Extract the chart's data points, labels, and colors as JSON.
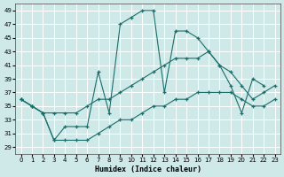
{
  "xlabel": "Humidex (Indice chaleur)",
  "bg_color": "#cfe9e9",
  "grid_color": "#ffffff",
  "line_color": "#1a6e6a",
  "xlim": [
    -0.5,
    23.5
  ],
  "ylim": [
    28,
    50
  ],
  "yticks": [
    29,
    31,
    33,
    35,
    37,
    39,
    41,
    43,
    45,
    47,
    49
  ],
  "xticks": [
    0,
    1,
    2,
    3,
    4,
    5,
    6,
    7,
    8,
    9,
    10,
    11,
    12,
    13,
    14,
    15,
    16,
    17,
    18,
    19,
    20,
    21,
    22,
    23
  ],
  "line1_x": [
    0,
    1,
    2,
    3,
    4,
    5,
    6,
    7,
    8,
    9,
    10,
    11,
    12,
    13,
    14,
    15,
    16,
    17,
    18,
    19,
    20,
    21,
    22
  ],
  "line1_y": [
    36,
    35,
    34,
    30,
    32,
    32,
    32,
    40,
    34,
    47,
    48,
    49,
    49,
    37,
    46,
    46,
    45,
    43,
    41,
    38,
    34,
    39,
    38
  ],
  "line2_x": [
    0,
    1,
    2,
    3,
    4,
    5,
    6,
    7,
    8,
    9,
    10,
    11,
    12,
    13,
    14,
    15,
    16,
    17,
    18,
    19,
    20,
    21,
    22,
    23
  ],
  "line2_y": [
    36,
    35,
    34,
    34,
    34,
    34,
    35,
    36,
    36,
    37,
    38,
    39,
    40,
    41,
    42,
    42,
    42,
    43,
    41,
    40,
    38,
    36,
    37,
    38
  ],
  "line3_x": [
    0,
    1,
    2,
    3,
    4,
    5,
    6,
    7,
    8,
    9,
    10,
    11,
    12,
    13,
    14,
    15,
    16,
    17,
    18,
    19,
    20,
    21,
    22,
    23
  ],
  "line3_y": [
    36,
    35,
    34,
    30,
    30,
    30,
    30,
    31,
    32,
    33,
    33,
    34,
    35,
    35,
    36,
    36,
    37,
    37,
    37,
    37,
    36,
    35,
    35,
    36
  ]
}
